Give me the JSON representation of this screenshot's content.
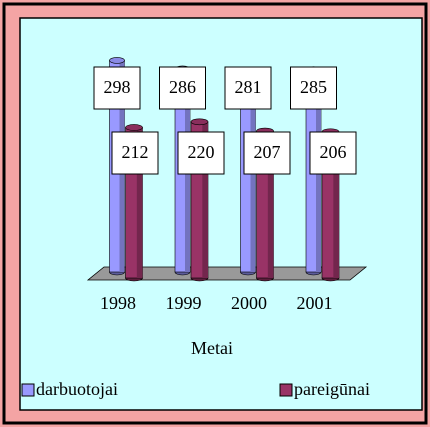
{
  "chart_data": {
    "type": "bar3d",
    "categories": [
      "1998",
      "1999",
      "2000",
      "2001"
    ],
    "x_label": "Metai",
    "series": [
      {
        "name": "darbuotojai",
        "color": "#9999ff",
        "values": [
          298,
          286,
          281,
          285
        ]
      },
      {
        "name": "pareigūnai",
        "color": "#993366",
        "values": [
          212,
          220,
          207,
          206
        ]
      }
    ]
  }
}
